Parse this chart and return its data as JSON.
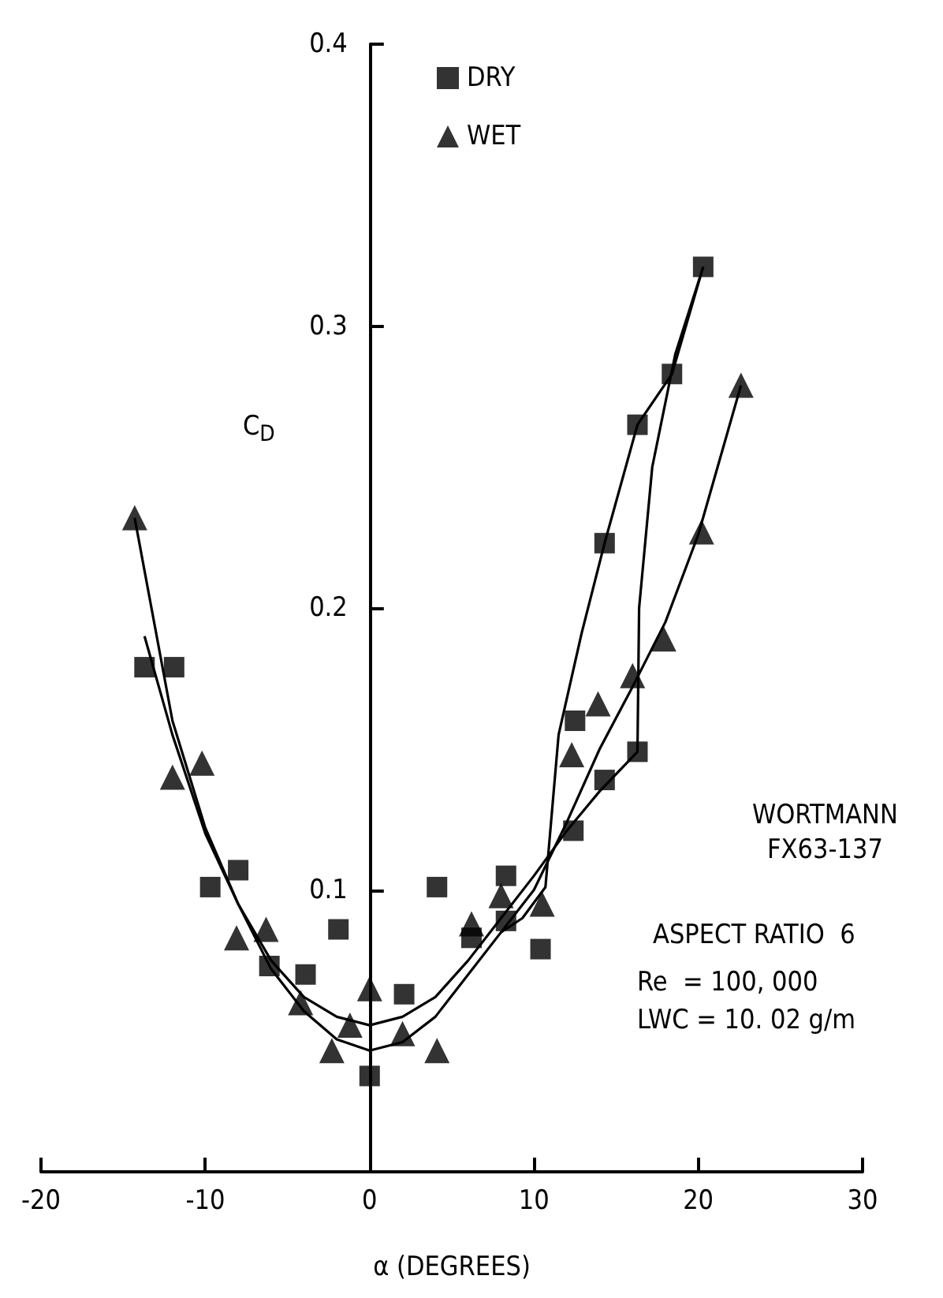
{
  "chart_data": {
    "type": "scatter",
    "xlabel": "α (DEGREES)",
    "ylabel": "C$_{D}$",
    "annotations": [
      "WORTMANN\nFX63-137",
      "ASPECT RATIO  6",
      "Re  = 100, 000",
      "LWC = 10. 02 g/m"
    ],
    "series": [
      {
        "name": "DRY",
        "color": "#000000",
        "marker": "square",
        "x": [
          -13.7,
          -11.9,
          -9.7,
          -8.0,
          -6.1,
          -3.9,
          -1.9,
          0,
          2.1,
          4.1,
          6.2,
          8.3,
          8.3,
          10.4,
          12.4,
          12.5,
          14.3,
          14.3,
          16.3,
          16.3,
          18.4,
          20.3
        ],
        "values": [
          0.179,
          0.179,
          0.101,
          0.107,
          0.073,
          0.07,
          0.086,
          0.034,
          0.063,
          0.101,
          0.083,
          0.105,
          0.089,
          0.079,
          0.121,
          0.16,
          0.139,
          0.223,
          0.149,
          0.265,
          0.283,
          0.321
        ]
      },
      {
        "name": "WET",
        "color": "#000000",
        "marker": "triangle",
        "x": [
          -14.3,
          -12.0,
          -10.2,
          -8.1,
          -6.3,
          -4.2,
          -2.3,
          -1.2,
          0,
          2.0,
          4.1,
          6.2,
          8.0,
          10.5,
          12.3,
          13.9,
          16.0,
          17.9,
          20.2,
          22.6
        ],
        "values": [
          0.232,
          0.14,
          0.145,
          0.083,
          0.086,
          0.06,
          0.043,
          0.052,
          0.065,
          0.049,
          0.043,
          0.088,
          0.098,
          0.095,
          0.148,
          0.166,
          0.176,
          0.189,
          0.227,
          0.279
        ]
      },
      {
        "type": "line",
        "color": "#000000",
        "marker": "none",
        "x": [
          -14.3,
          -12,
          -10,
          -8,
          -6,
          -4,
          -2,
          0,
          2,
          4,
          6,
          8,
          10,
          12,
          14,
          16,
          18,
          20,
          22.6
        ],
        "values": [
          0.232,
          0.16,
          0.122,
          0.095,
          0.072,
          0.057,
          0.047,
          0.043,
          0.046,
          0.055,
          0.07,
          0.085,
          0.1,
          0.124,
          0.15,
          0.172,
          0.195,
          0.226,
          0.279
        ]
      },
      {
        "type": "line",
        "color": "#000000",
        "marker": "none",
        "x": [
          -13.7,
          -12,
          -10,
          -8,
          -6,
          -4,
          -2,
          0,
          2,
          4,
          6,
          8,
          10,
          12,
          14,
          16.3,
          16.4,
          17.2,
          18.6,
          20.3
        ],
        "values": [
          0.19,
          0.155,
          0.12,
          0.095,
          0.075,
          0.062,
          0.055,
          0.052,
          0.055,
          0.062,
          0.075,
          0.09,
          0.105,
          0.121,
          0.135,
          0.149,
          0.2,
          0.25,
          0.29,
          0.321
        ]
      },
      {
        "type": "line",
        "color": "#000000",
        "marker": "none",
        "x": [
          20.3,
          18.4,
          16.3,
          14.3,
          12.9,
          11.5,
          10.7,
          9.3,
          8
        ],
        "values": [
          0.321,
          0.283,
          0.265,
          0.223,
          0.191,
          0.155,
          0.101,
          0.09,
          0.085
        ]
      }
    ],
    "xlim": [
      -20,
      30
    ],
    "xticks": [
      -20,
      -10,
      0,
      10,
      20,
      30
    ],
    "ylim": [
      0,
      0.4
    ],
    "yticks": [
      0.1,
      0.2,
      0.3,
      0.4
    ],
    "grid": false,
    "legend": "top",
    "line_style": "solid"
  }
}
